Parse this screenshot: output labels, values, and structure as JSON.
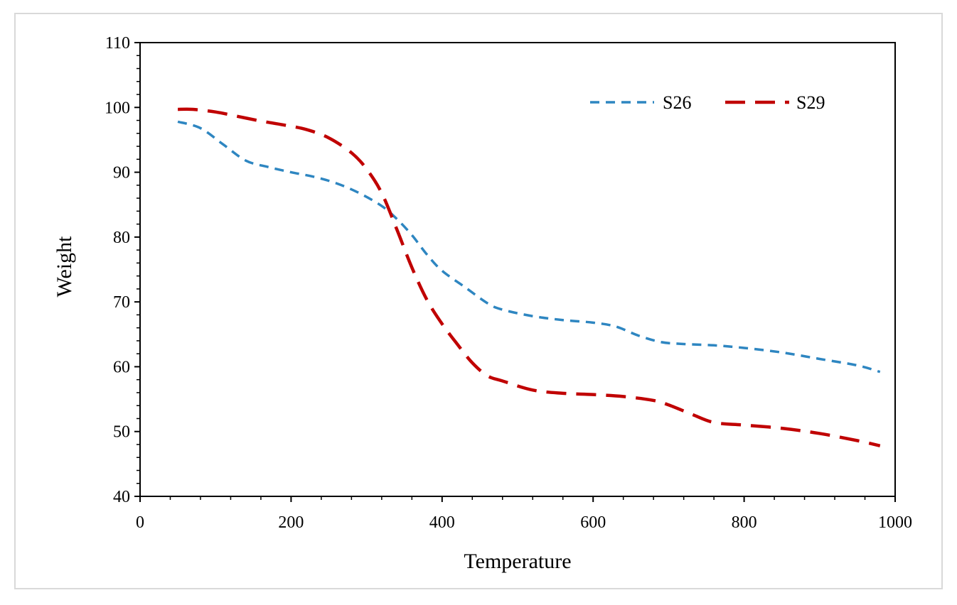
{
  "chart_data": {
    "type": "line",
    "title": "",
    "xlabel": "Temperature",
    "ylabel": "Weight",
    "xlim": [
      0,
      1000
    ],
    "ylim": [
      40,
      110
    ],
    "xticks": [
      0,
      200,
      400,
      600,
      800,
      1000
    ],
    "yticks": [
      40,
      50,
      60,
      70,
      80,
      90,
      100,
      110
    ],
    "grid": false,
    "legend_position": "top-right",
    "series": [
      {
        "name": "S26",
        "color": "#2e86c1",
        "style": "short-dash",
        "x": [
          50,
          80,
          110,
          140,
          170,
          200,
          230,
          260,
          290,
          320,
          340,
          360,
          380,
          400,
          430,
          460,
          480,
          520,
          560,
          600,
          630,
          660,
          690,
          720,
          760,
          800,
          850,
          900,
          950,
          980
        ],
        "y": [
          97.8,
          96.8,
          94.3,
          91.8,
          90.8,
          90.0,
          89.3,
          88.3,
          86.8,
          84.8,
          82.8,
          80.3,
          77.3,
          74.8,
          72.3,
          69.8,
          68.8,
          67.8,
          67.2,
          66.8,
          66.2,
          64.8,
          63.8,
          63.5,
          63.3,
          62.9,
          62.2,
          61.2,
          60.2,
          59.2
        ]
      },
      {
        "name": "S29",
        "color": "#c00000",
        "style": "long-dash",
        "x": [
          50,
          70,
          100,
          130,
          160,
          190,
          220,
          250,
          280,
          300,
          320,
          340,
          360,
          380,
          400,
          420,
          440,
          460,
          480,
          520,
          560,
          600,
          640,
          680,
          700,
          730,
          760,
          800,
          850,
          900,
          950,
          980
        ],
        "y": [
          99.7,
          99.7,
          99.3,
          98.6,
          97.9,
          97.3,
          96.6,
          95.3,
          93.0,
          90.5,
          86.8,
          81.2,
          75.3,
          70.3,
          66.6,
          63.5,
          60.6,
          58.6,
          57.8,
          56.4,
          55.9,
          55.7,
          55.4,
          54.8,
          54.1,
          52.7,
          51.4,
          51.0,
          50.5,
          49.7,
          48.6,
          47.8
        ]
      }
    ]
  }
}
